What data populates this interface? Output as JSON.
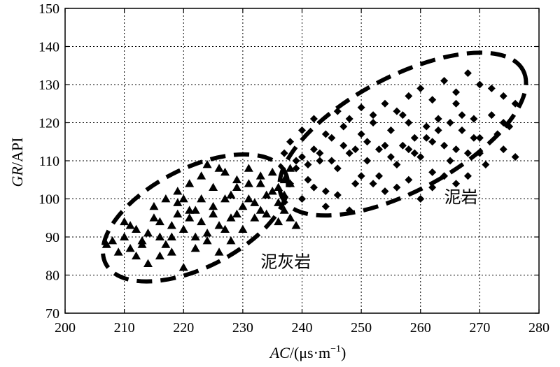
{
  "chart_data": {
    "type": "scatter",
    "title": "",
    "xlabel": "AC/(μs·m⁻¹)",
    "xlabel_var": "AC",
    "xlabel_unit": "/(μs·m",
    "xlabel_exp": "−1",
    "xlabel_close": ")",
    "ylabel": "GR/API",
    "ylabel_var": "GR",
    "ylabel_unit": "/API",
    "xlim": [
      200,
      280
    ],
    "ylim": [
      70,
      150
    ],
    "xticks": [
      "200",
      "210",
      "220",
      "230",
      "240",
      "250",
      "260",
      "270",
      "280"
    ],
    "yticks": [
      "70",
      "80",
      "90",
      "100",
      "110",
      "120",
      "130",
      "140",
      "150"
    ],
    "grid": true,
    "grid_style": "dotted",
    "series": [
      {
        "name": "泥灰岩",
        "marker": "triangle",
        "points": [
          [
            207,
            88
          ],
          [
            208,
            89
          ],
          [
            209,
            86
          ],
          [
            210,
            90
          ],
          [
            211,
            87
          ],
          [
            212,
            92
          ],
          [
            213,
            89
          ],
          [
            214,
            91
          ],
          [
            215,
            95
          ],
          [
            216,
            90
          ],
          [
            217,
            88
          ],
          [
            218,
            93
          ],
          [
            219,
            96
          ],
          [
            220,
            92
          ],
          [
            221,
            97
          ],
          [
            222,
            90
          ],
          [
            223,
            94
          ],
          [
            224,
            89
          ],
          [
            225,
            98
          ],
          [
            226,
            93
          ],
          [
            227,
            100
          ],
          [
            228,
            95
          ],
          [
            229,
            103
          ],
          [
            230,
            98
          ],
          [
            231,
            104
          ],
          [
            232,
            99
          ],
          [
            233,
            106
          ],
          [
            234,
            101
          ],
          [
            235,
            107
          ],
          [
            236,
            103
          ],
          [
            237,
            105
          ],
          [
            238,
            108
          ],
          [
            212,
            85
          ],
          [
            214,
            83
          ],
          [
            216,
            85
          ],
          [
            218,
            86
          ],
          [
            220,
            82
          ],
          [
            222,
            87
          ],
          [
            224,
            91
          ],
          [
            226,
            86
          ],
          [
            228,
            89
          ],
          [
            230,
            92
          ],
          [
            232,
            95
          ],
          [
            234,
            96
          ],
          [
            236,
            94
          ],
          [
            237,
            97
          ],
          [
            238,
            95
          ],
          [
            239,
            93
          ],
          [
            215,
            98
          ],
          [
            217,
            100
          ],
          [
            219,
            102
          ],
          [
            221,
            104
          ],
          [
            223,
            106
          ],
          [
            225,
            103
          ],
          [
            227,
            107
          ],
          [
            229,
            105
          ],
          [
            231,
            108
          ],
          [
            233,
            104
          ],
          [
            235,
            102
          ],
          [
            236,
            99
          ],
          [
            237,
            101
          ],
          [
            238,
            104
          ],
          [
            226,
            108
          ],
          [
            224,
            109
          ],
          [
            219,
            99
          ],
          [
            221,
            95
          ],
          [
            223,
            100
          ],
          [
            225,
            96
          ],
          [
            227,
            92
          ],
          [
            229,
            96
          ],
          [
            231,
            100
          ],
          [
            233,
            97
          ],
          [
            211,
            93
          ],
          [
            213,
            88
          ],
          [
            210,
            94
          ],
          [
            216,
            94
          ],
          [
            218,
            90
          ],
          [
            220,
            100
          ],
          [
            222,
            97
          ],
          [
            228,
            101
          ]
        ]
      },
      {
        "name": "泥岩",
        "marker": "diamond",
        "points": [
          [
            237,
            112
          ],
          [
            238,
            115
          ],
          [
            239,
            108
          ],
          [
            240,
            111
          ],
          [
            241,
            105
          ],
          [
            242,
            113
          ],
          [
            243,
            110
          ],
          [
            244,
            102
          ],
          [
            245,
            116
          ],
          [
            246,
            108
          ],
          [
            247,
            119
          ],
          [
            248,
            112
          ],
          [
            249,
            104
          ],
          [
            250,
            117
          ],
          [
            251,
            110
          ],
          [
            252,
            120
          ],
          [
            253,
            106
          ],
          [
            254,
            114
          ],
          [
            255,
            118
          ],
          [
            256,
            109
          ],
          [
            257,
            122
          ],
          [
            258,
            113
          ],
          [
            259,
            116
          ],
          [
            260,
            111
          ],
          [
            261,
            119
          ],
          [
            262,
            107
          ],
          [
            263,
            121
          ],
          [
            264,
            114
          ],
          [
            265,
            110
          ],
          [
            266,
            125
          ],
          [
            267,
            118
          ],
          [
            268,
            112
          ],
          [
            269,
            121
          ],
          [
            270,
            116
          ],
          [
            271,
            109
          ],
          [
            272,
            122
          ],
          [
            273,
            117
          ],
          [
            274,
            113
          ],
          [
            275,
            119
          ],
          [
            276,
            111
          ],
          [
            238,
            104
          ],
          [
            240,
            100
          ],
          [
            242,
            103
          ],
          [
            244,
            98
          ],
          [
            246,
            101
          ],
          [
            248,
            97
          ],
          [
            250,
            106
          ],
          [
            252,
            104
          ],
          [
            254,
            102
          ],
          [
            256,
            103
          ],
          [
            258,
            105
          ],
          [
            260,
            100
          ],
          [
            262,
            103
          ],
          [
            264,
            106
          ],
          [
            266,
            104
          ],
          [
            268,
            106
          ],
          [
            240,
            118
          ],
          [
            242,
            121
          ],
          [
            244,
            117
          ],
          [
            246,
            123
          ],
          [
            248,
            121
          ],
          [
            250,
            124
          ],
          [
            252,
            122
          ],
          [
            254,
            125
          ],
          [
            256,
            123
          ],
          [
            258,
            127
          ],
          [
            260,
            129
          ],
          [
            262,
            126
          ],
          [
            264,
            131
          ],
          [
            266,
            128
          ],
          [
            268,
            133
          ],
          [
            270,
            130
          ],
          [
            272,
            129
          ],
          [
            274,
            127
          ],
          [
            276,
            125
          ],
          [
            258,
            120
          ],
          [
            262,
            115
          ],
          [
            266,
            113
          ],
          [
            270,
            112
          ],
          [
            274,
            120
          ],
          [
            239,
            110
          ],
          [
            241,
            109
          ],
          [
            243,
            112
          ],
          [
            245,
            110
          ],
          [
            247,
            114
          ],
          [
            249,
            113
          ],
          [
            251,
            115
          ],
          [
            253,
            113
          ],
          [
            255,
            111
          ],
          [
            257,
            114
          ],
          [
            259,
            112
          ],
          [
            261,
            116
          ],
          [
            263,
            118
          ],
          [
            265,
            120
          ],
          [
            267,
            122
          ],
          [
            269,
            116
          ]
        ]
      }
    ],
    "annotations": [
      {
        "text": "泥灰岩",
        "x": 233,
        "y": 82
      },
      {
        "text": "泥岩",
        "x": 264,
        "y": 99
      }
    ],
    "regions": [
      {
        "label": "泥灰岩",
        "cx": 222,
        "cy": 95,
        "rx": 17,
        "ry": 13,
        "angle_deg": -27
      },
      {
        "label": "泥岩",
        "cx": 257,
        "cy": 117,
        "rx": 23,
        "ry": 15,
        "angle_deg": -28
      }
    ]
  }
}
